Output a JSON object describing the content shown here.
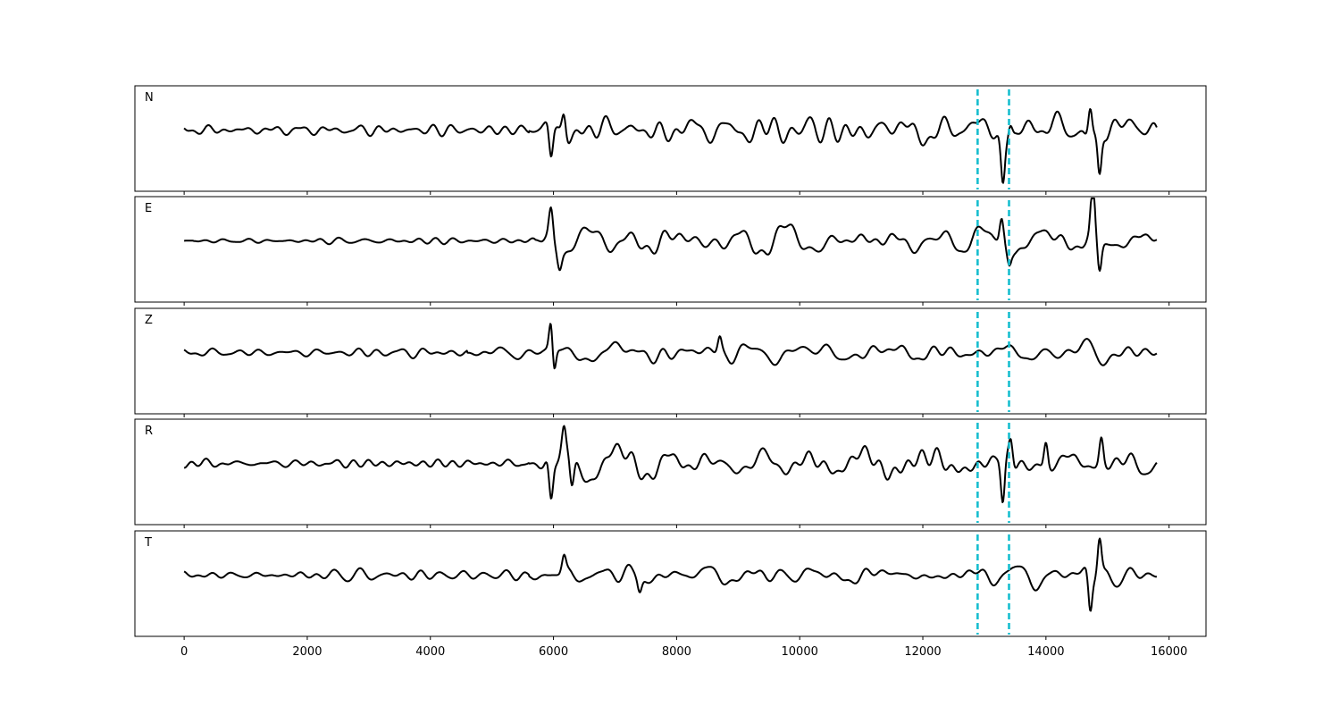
{
  "chart_data": {
    "type": "line",
    "xlim": [
      -800,
      16600
    ],
    "x_ticks": [
      0,
      2000,
      4000,
      6000,
      8000,
      10000,
      12000,
      14000,
      16000
    ],
    "x_tick_labels": [
      "0",
      "2000",
      "4000",
      "6000",
      "8000",
      "10000",
      "12000",
      "14000",
      "16000"
    ],
    "x_range": [
      0,
      15800
    ],
    "markers": [
      12890,
      13400
    ],
    "marker_color": "#17BECF",
    "trace_color": "#000000",
    "grid": false,
    "y_ticks_shown": false,
    "series": [
      {
        "name": "N",
        "noise_amp": 0.07,
        "quiet_end": 5600,
        "coda_amp": 0.45,
        "peak_x": 14870,
        "peak_amp": 0.95,
        "onset": [
          [
            5960,
            -0.75
          ],
          [
            6170,
            0.55
          ],
          [
            13300,
            -1.05
          ],
          [
            13420,
            0.3
          ],
          [
            14720,
            0.75
          ],
          [
            14870,
            -1.0
          ]
        ],
        "seed": 11
      },
      {
        "name": "E",
        "noise_amp": 0.06,
        "quiet_end": 5700,
        "coda_amp": 0.35,
        "peak_x": 14760,
        "peak_amp": 0.9,
        "onset": [
          [
            5960,
            0.6
          ],
          [
            6100,
            -0.3
          ],
          [
            13280,
            0.55
          ],
          [
            13400,
            -0.3
          ],
          [
            14760,
            1.05
          ],
          [
            14870,
            -0.7
          ]
        ],
        "seed": 23
      },
      {
        "name": "Z",
        "noise_amp": 0.05,
        "quiet_end": 4600,
        "coda_amp": 0.25,
        "peak_x": 5970,
        "peak_amp": 0.4,
        "onset": [
          [
            5970,
            1.15
          ],
          [
            5990,
            -0.5
          ],
          [
            6000,
            -0.55
          ],
          [
            8700,
            0.35
          ]
        ],
        "seed": 37
      },
      {
        "name": "R",
        "noise_amp": 0.07,
        "quiet_end": 5600,
        "coda_amp": 0.45,
        "peak_x": 14900,
        "peak_amp": 0.9,
        "onset": [
          [
            5960,
            -0.9
          ],
          [
            6170,
            0.5
          ],
          [
            6300,
            -0.65
          ],
          [
            13300,
            -1.1
          ],
          [
            13430,
            0.55
          ],
          [
            14000,
            0.6
          ],
          [
            14900,
            0.6
          ]
        ],
        "seed": 41
      },
      {
        "name": "T",
        "noise_amp": 0.06,
        "quiet_end": 5600,
        "coda_amp": 0.3,
        "peak_x": 14870,
        "peak_amp": 0.9,
        "onset": [
          [
            6170,
            0.35
          ],
          [
            7400,
            -0.3
          ],
          [
            14720,
            -0.9
          ],
          [
            14870,
            0.85
          ]
        ],
        "seed": 53
      }
    ]
  }
}
